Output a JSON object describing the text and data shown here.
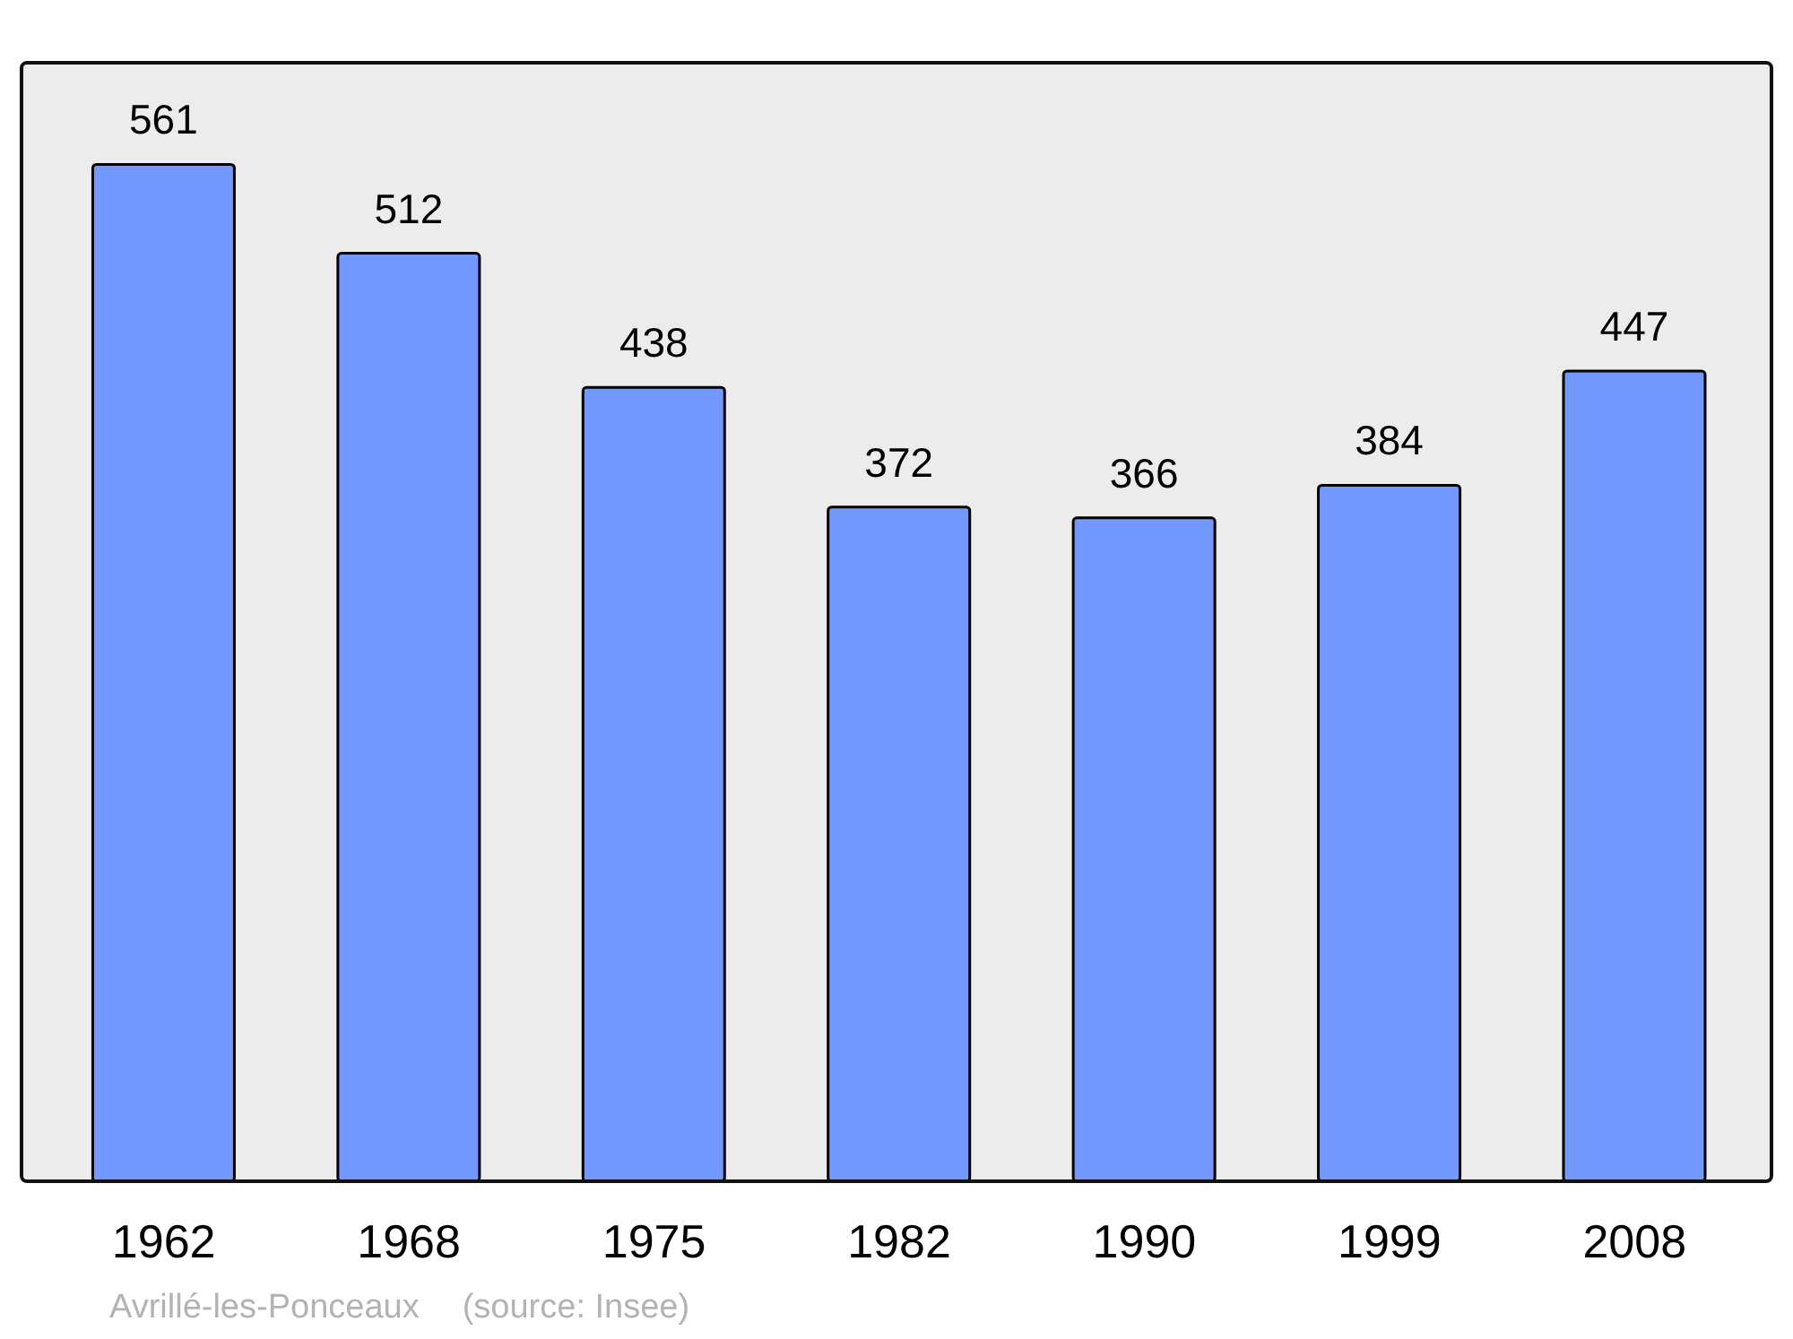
{
  "chart_data": {
    "type": "bar",
    "categories": [
      "1962",
      "1968",
      "1975",
      "1982",
      "1990",
      "1999",
      "2008"
    ],
    "values": [
      561,
      512,
      438,
      372,
      366,
      384,
      447
    ],
    "color": "#7399ff",
    "data_labels": true,
    "grid": false,
    "legend": false,
    "tick_labels": "x",
    "annotations": [
      "Avrillé-les-Ponceaux",
      "(source: Insee)"
    ]
  }
}
